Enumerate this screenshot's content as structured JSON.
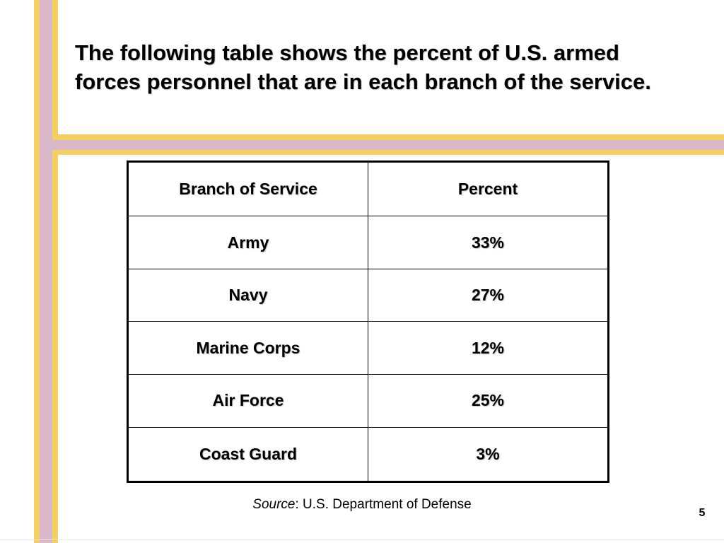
{
  "slide": {
    "title": "The following table shows the percent of U.S. armed forces personnel that are in each branch of the service.",
    "slide_number": "5"
  },
  "table": {
    "headers": [
      "Branch of Service",
      "Percent"
    ],
    "rows": [
      [
        "Army",
        "33%"
      ],
      [
        "Navy",
        "27%"
      ],
      [
        "Marine Corps",
        "12%"
      ],
      [
        "Air Force",
        "25%"
      ],
      [
        "Coast Guard",
        "3%"
      ]
    ]
  },
  "source": {
    "label": "Source",
    "text": ": U.S. Department of Defense"
  },
  "colors": {
    "stripe_yellow": "#f5d060",
    "stripe_pink": "#d9b8c9",
    "text": "#000000",
    "background": "#ffffff"
  }
}
